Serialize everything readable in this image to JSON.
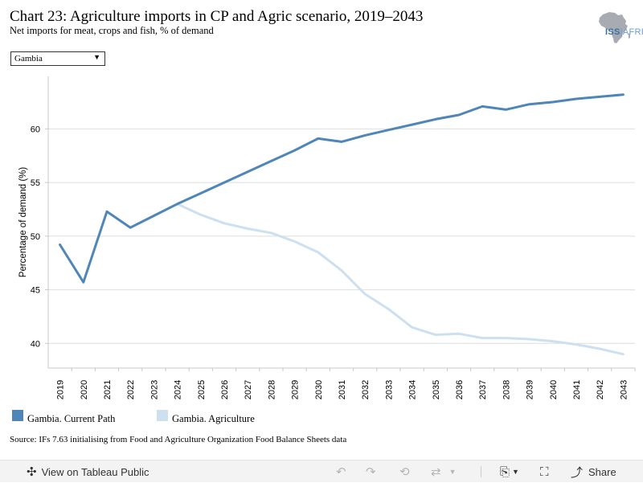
{
  "header": {
    "title": "Chart 23: Agriculture imports in CP and Agric scenario, 2019–2043",
    "subtitle": "Net imports for meat, crops and fish, % of demand",
    "logo_text_main": "ISS",
    "logo_text_sub": "AFRICA"
  },
  "filter": {
    "selected": "Gambia"
  },
  "source": "Source: IFs 7.63 initialising from Food and Agriculture Organization Food Balance Sheets data",
  "toolbar": {
    "view_label": "View on Tableau Public",
    "share_label": "Share"
  },
  "chart_data": {
    "type": "line",
    "title": "Chart 23: Agriculture imports in CP and Agric scenario, 2019–2043",
    "ylabel": "Percentage of demand (%)",
    "xlabel": "",
    "ylim": [
      37.7,
      64.9
    ],
    "yticks": [
      40,
      45,
      50,
      55,
      60
    ],
    "grid": true,
    "legend_position": "bottom",
    "x": [
      2019,
      2020,
      2021,
      2022,
      2023,
      2024,
      2025,
      2026,
      2027,
      2028,
      2029,
      2030,
      2031,
      2032,
      2033,
      2034,
      2035,
      2036,
      2037,
      2038,
      2039,
      2040,
      2041,
      2042,
      2043
    ],
    "series": [
      {
        "name": "Gambia. Current Path",
        "color": "#4e86ba",
        "values": [
          49.2,
          45.7,
          52.3,
          50.8,
          51.9,
          53.0,
          54.0,
          55.0,
          56.0,
          57.0,
          58.0,
          59.1,
          58.8,
          59.4,
          59.9,
          60.4,
          60.9,
          61.3,
          62.1,
          61.8,
          62.3,
          62.5,
          62.8,
          63.0,
          63.2
        ]
      },
      {
        "name": "Gambia. Agriculture",
        "color": "#cde0ef",
        "values": [
          null,
          null,
          null,
          null,
          null,
          53.0,
          52.0,
          51.2,
          50.7,
          50.3,
          49.5,
          48.5,
          46.8,
          44.6,
          43.2,
          41.5,
          40.8,
          40.9,
          40.5,
          40.5,
          40.4,
          40.2,
          39.9,
          39.5,
          39.0
        ]
      }
    ]
  }
}
